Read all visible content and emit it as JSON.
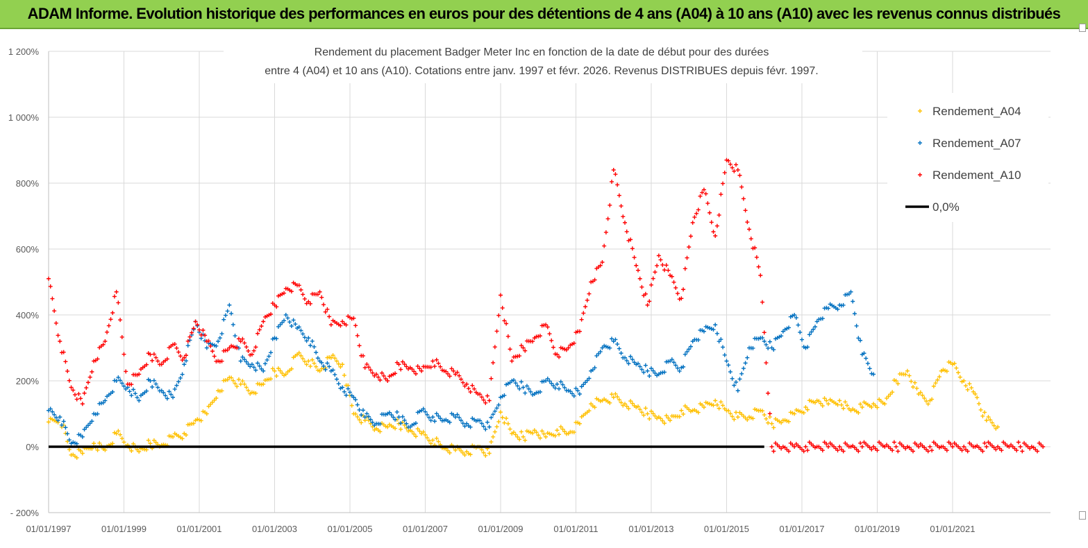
{
  "header": {
    "title": "ADAM Informe. Evolution historique des performances en euros pour des détentions de 4 ans (A04) à 10 ans (A10) avec les revenus connus distribués"
  },
  "chart_data": {
    "type": "scatter",
    "title_lines": [
      "Rendement du placement Badger Meter Inc en fonction de la date de début pour des durées",
      "entre 4 (A04) et 10 ans (A10). Cotations entre janv. 1997 et févr. 2026. Revenus DISTRIBUES depuis févr. 1997."
    ],
    "xlabel": "",
    "ylabel": "",
    "ylim": [
      -200,
      1200
    ],
    "xlim": [
      1997.0,
      2023.6
    ],
    "y_ticks": [
      -200,
      0,
      200,
      400,
      600,
      800,
      1000,
      1200
    ],
    "y_tick_labels": [
      "- 200%",
      "0%",
      "200%",
      "400%",
      "600%",
      "800%",
      "1 000%",
      "1 200%"
    ],
    "x_ticks": [
      1997,
      1999,
      2001,
      2003,
      2005,
      2007,
      2009,
      2011,
      2013,
      2015,
      2017,
      2019,
      2021
    ],
    "x_tick_labels": [
      "01/01/1997",
      "01/01/1999",
      "01/01/2001",
      "01/01/2003",
      "01/01/2005",
      "01/01/2007",
      "01/01/2009",
      "01/01/2011",
      "01/01/2013",
      "01/01/2015",
      "01/01/2017",
      "01/01/2019",
      "01/01/2021"
    ],
    "grid": true,
    "legend_position": "top-right",
    "series": [
      {
        "name": "Rendement_A04",
        "color": "#ffc000",
        "marker": "+",
        "x": [
          1997.0,
          1997.3,
          1997.6,
          1997.9,
          1998.2,
          1998.5,
          1998.8,
          1999.1,
          1999.4,
          1999.7,
          2000.0,
          2000.3,
          2000.6,
          2000.9,
          2001.2,
          2001.5,
          2001.8,
          2002.1,
          2002.4,
          2002.7,
          2003.0,
          2003.3,
          2003.6,
          2003.9,
          2004.2,
          2004.5,
          2004.8,
          2005.1,
          2005.4,
          2005.7,
          2006.0,
          2006.3,
          2006.6,
          2006.9,
          2007.2,
          2007.5,
          2007.8,
          2008.1,
          2008.4,
          2008.7,
          2009.0,
          2009.3,
          2009.6,
          2009.9,
          2010.2,
          2010.5,
          2010.8,
          2011.1,
          2011.4,
          2011.7,
          2012.0,
          2012.3,
          2012.6,
          2012.9,
          2013.2,
          2013.5,
          2013.8,
          2014.1,
          2014.4,
          2014.7,
          2015.0,
          2015.3,
          2015.6,
          2015.9,
          2016.2,
          2016.5,
          2016.8,
          2017.1,
          2017.4,
          2017.7,
          2018.0,
          2018.3,
          2018.6,
          2018.9,
          2019.2,
          2019.5,
          2019.8,
          2020.1,
          2020.4,
          2020.7,
          2021.0,
          2021.3,
          2021.6,
          2021.9,
          2022.2
        ],
        "y": [
          75,
          90,
          -25,
          -20,
          10,
          -10,
          40,
          5,
          -15,
          10,
          5,
          30,
          40,
          80,
          100,
          170,
          210,
          190,
          165,
          190,
          230,
          220,
          280,
          260,
          230,
          270,
          250,
          100,
          80,
          55,
          60,
          70,
          50,
          40,
          20,
          -5,
          -10,
          -15,
          0,
          -20,
          105,
          40,
          30,
          50,
          30,
          50,
          40,
          70,
          130,
          140,
          150,
          130,
          120,
          100,
          90,
          80,
          110,
          110,
          120,
          140,
          110,
          90,
          90,
          110,
          70,
          80,
          100,
          120,
          140,
          130,
          140,
          110,
          120,
          130,
          130,
          200,
          230,
          160,
          140,
          230,
          250,
          200,
          160,
          80,
          60
        ]
      },
      {
        "name": "Rendement_A07",
        "color": "#0070c0",
        "marker": "+",
        "x": [
          1997.0,
          1997.3,
          1997.6,
          1997.9,
          1998.2,
          1998.5,
          1998.8,
          1999.1,
          1999.4,
          1999.7,
          2000.0,
          2000.3,
          2000.6,
          2000.9,
          2001.2,
          2001.5,
          2001.8,
          2002.1,
          2002.4,
          2002.7,
          2003.0,
          2003.3,
          2003.6,
          2003.9,
          2004.2,
          2004.5,
          2004.8,
          2005.1,
          2005.4,
          2005.7,
          2006.0,
          2006.3,
          2006.6,
          2006.9,
          2007.2,
          2007.5,
          2007.8,
          2008.1,
          2008.4,
          2008.7,
          2009.0,
          2009.3,
          2009.6,
          2009.9,
          2010.2,
          2010.5,
          2010.8,
          2011.1,
          2011.4,
          2011.7,
          2012.0,
          2012.3,
          2012.6,
          2012.9,
          2013.2,
          2013.5,
          2013.8,
          2014.1,
          2014.4,
          2014.7,
          2015.0,
          2015.3,
          2015.6,
          2015.9,
          2016.2,
          2016.5,
          2016.8,
          2017.1,
          2017.4,
          2017.7,
          2018.0,
          2018.3,
          2018.6,
          2018.9
        ],
        "y": [
          110,
          90,
          10,
          30,
          100,
          140,
          200,
          180,
          140,
          200,
          170,
          150,
          250,
          380,
          300,
          320,
          430,
          260,
          250,
          230,
          330,
          400,
          360,
          330,
          260,
          230,
          180,
          150,
          90,
          70,
          100,
          90,
          60,
          110,
          90,
          80,
          90,
          70,
          80,
          60,
          150,
          200,
          180,
          160,
          200,
          190,
          170,
          160,
          230,
          300,
          320,
          270,
          250,
          230,
          220,
          260,
          240,
          320,
          350,
          370,
          260,
          170,
          300,
          330,
          300,
          350,
          400,
          300,
          380,
          420,
          430,
          470,
          280,
          220
        ]
      },
      {
        "name": "Rendement_A10",
        "color": "#ff0000",
        "marker": "+",
        "x": [
          1997.0,
          1997.3,
          1997.6,
          1997.9,
          1998.2,
          1998.5,
          1998.8,
          1999.1,
          1999.4,
          1999.7,
          2000.0,
          2000.3,
          2000.6,
          2000.9,
          2001.2,
          2001.5,
          2001.8,
          2002.1,
          2002.4,
          2002.7,
          2003.0,
          2003.3,
          2003.6,
          2003.9,
          2004.2,
          2004.5,
          2004.8,
          2005.1,
          2005.4,
          2005.7,
          2006.0,
          2006.3,
          2006.6,
          2006.9,
          2007.2,
          2007.5,
          2007.8,
          2008.1,
          2008.4,
          2008.7,
          2009.0,
          2009.3,
          2009.6,
          2009.9,
          2010.2,
          2010.5,
          2010.8,
          2011.1,
          2011.4,
          2011.7,
          2012.0,
          2012.3,
          2012.6,
          2012.9,
          2013.2,
          2013.5,
          2013.8,
          2014.1,
          2014.4,
          2014.7,
          2015.0,
          2015.3,
          2015.6,
          2015.9,
          2016.2,
          2016.5,
          2016.8,
          2017.1,
          2017.4,
          2017.7,
          2018.0,
          2018.3,
          2018.6,
          2018.9,
          2019.2,
          2019.5,
          2019.8,
          2020.1,
          2020.4,
          2020.7,
          2021.0,
          2021.3,
          2021.6,
          2021.9,
          2022.2,
          2022.5,
          2022.8,
          2023.1,
          2023.4
        ],
        "y": [
          510,
          320,
          180,
          130,
          260,
          320,
          470,
          190,
          220,
          280,
          250,
          310,
          270,
          380,
          320,
          260,
          300,
          320,
          280,
          380,
          430,
          480,
          490,
          440,
          470,
          370,
          380,
          390,
          240,
          220,
          200,
          250,
          240,
          230,
          260,
          230,
          220,
          190,
          160,
          140,
          460,
          260,
          300,
          330,
          370,
          280,
          300,
          350,
          500,
          560,
          840,
          680,
          550,
          430,
          580,
          520,
          450,
          680,
          780,
          640,
          870,
          840,
          660,
          520,
          0,
          0,
          0,
          0,
          0,
          0,
          0,
          0,
          0,
          0,
          0,
          0,
          0,
          0,
          0,
          0,
          0,
          0,
          0,
          0,
          0,
          0,
          0,
          0,
          0
        ]
      },
      {
        "name": "0,0%",
        "color": "#000000",
        "marker": "line",
        "x": [
          1997.0,
          2016.0
        ],
        "y": [
          0,
          0
        ]
      }
    ]
  }
}
